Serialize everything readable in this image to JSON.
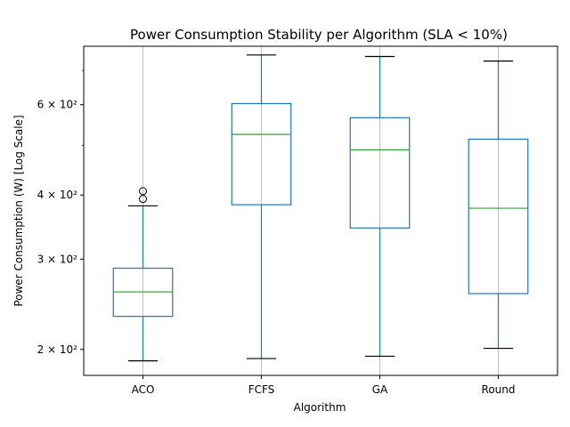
{
  "chart_data": {
    "type": "boxplot",
    "title": "Power Consumption Stability per Algorithm (SLA < 10%)",
    "xlabel": "Algorithm",
    "ylabel": "Power Consumption (W) [Log Scale]",
    "yscale": "log",
    "ylim": [
      178,
      780
    ],
    "grid": "vertical",
    "categories": [
      "ACO",
      "FCFS",
      "GA",
      "Round"
    ],
    "y_tick_labels": [
      {
        "value": 200,
        "label": "2 × 10²"
      },
      {
        "value": 300,
        "label": "3 × 10²"
      },
      {
        "value": 400,
        "label": "4 × 10²"
      },
      {
        "value": 600,
        "label": "6 × 10²"
      }
    ],
    "y_minor_ticks": [
      500,
      700
    ],
    "boxes": [
      {
        "category": "ACO",
        "whisker_low": 190,
        "q1": 232,
        "median": 259,
        "q3": 288,
        "whisker_high": 381,
        "outliers": [
          393,
          407
        ]
      },
      {
        "category": "FCFS",
        "whisker_low": 192,
        "q1": 383,
        "median": 525,
        "q3": 603,
        "whisker_high": 750,
        "outliers": []
      },
      {
        "category": "GA",
        "whisker_low": 194,
        "q1": 345,
        "median": 490,
        "q3": 566,
        "whisker_high": 745,
        "outliers": []
      },
      {
        "category": "Round",
        "whisker_low": 201,
        "q1": 257,
        "median": 377,
        "q3": 514,
        "whisker_high": 730,
        "outliers": []
      }
    ],
    "colors": {
      "box": "#1f77b4",
      "median": "#2ca02c",
      "whisker_cap": "#000000",
      "grid": "#b0b0b0",
      "axes": "#000000"
    }
  }
}
